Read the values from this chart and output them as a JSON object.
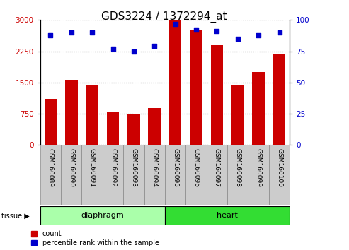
{
  "title": "GDS3224 / 1372294_at",
  "samples": [
    "GSM160089",
    "GSM160090",
    "GSM160091",
    "GSM160092",
    "GSM160093",
    "GSM160094",
    "GSM160095",
    "GSM160096",
    "GSM160097",
    "GSM160098",
    "GSM160099",
    "GSM160100"
  ],
  "counts": [
    1100,
    1560,
    1450,
    800,
    730,
    880,
    3000,
    2750,
    2400,
    1430,
    1750,
    2200
  ],
  "percentiles": [
    88,
    90,
    90,
    77,
    75,
    79,
    97,
    92,
    91,
    85,
    88,
    90
  ],
  "bar_color": "#cc0000",
  "dot_color": "#0000cc",
  "ylim_left": [
    0,
    3000
  ],
  "ylim_right": [
    0,
    100
  ],
  "yticks_left": [
    0,
    750,
    1500,
    2250,
    3000
  ],
  "yticks_right": [
    0,
    25,
    50,
    75,
    100
  ],
  "groups": [
    {
      "label": "diaphragm",
      "start": 0,
      "end": 6,
      "color": "#aaffaa"
    },
    {
      "label": "heart",
      "start": 6,
      "end": 12,
      "color": "#33dd33"
    }
  ],
  "legend_items": [
    {
      "label": "count",
      "color": "#cc0000"
    },
    {
      "label": "percentile rank within the sample",
      "color": "#0000cc"
    }
  ],
  "background_color": "#ffffff",
  "tick_label_bg": "#cccccc",
  "title_fontsize": 11,
  "tick_fontsize": 7.5,
  "label_fontsize": 6.5
}
